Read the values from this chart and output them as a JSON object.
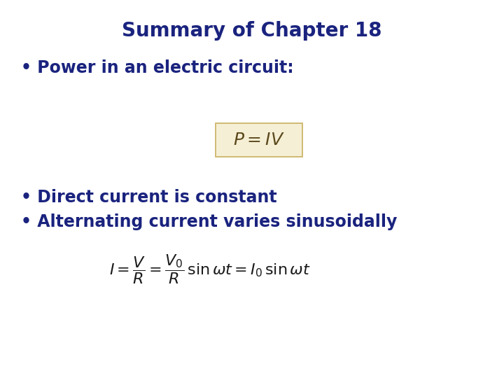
{
  "title": "Summary of Chapter 18",
  "title_color": "#1a237e",
  "title_fontsize": 20,
  "background_color": "#ffffff",
  "bullet_color": "#1a237e",
  "bullet_fontsize": 17,
  "formula1_color": "#5c4a1e",
  "formula2_color": "#1a1a1a",
  "bullet1": "Power in an electric circuit:",
  "bullet2": "Direct current is constant",
  "bullet3": "Alternating current varies sinusoidally",
  "formula1": "$P = IV$",
  "formula2": "$I = \\dfrac{V}{R} = \\dfrac{V_0}{R}\\,\\sin\\omega t = I_0\\,\\sin\\omega t$",
  "formula1_box_color": "#f5efd5",
  "formula1_box_edgecolor": "#c8b060",
  "formula1_fontsize": 18,
  "formula2_fontsize": 16
}
